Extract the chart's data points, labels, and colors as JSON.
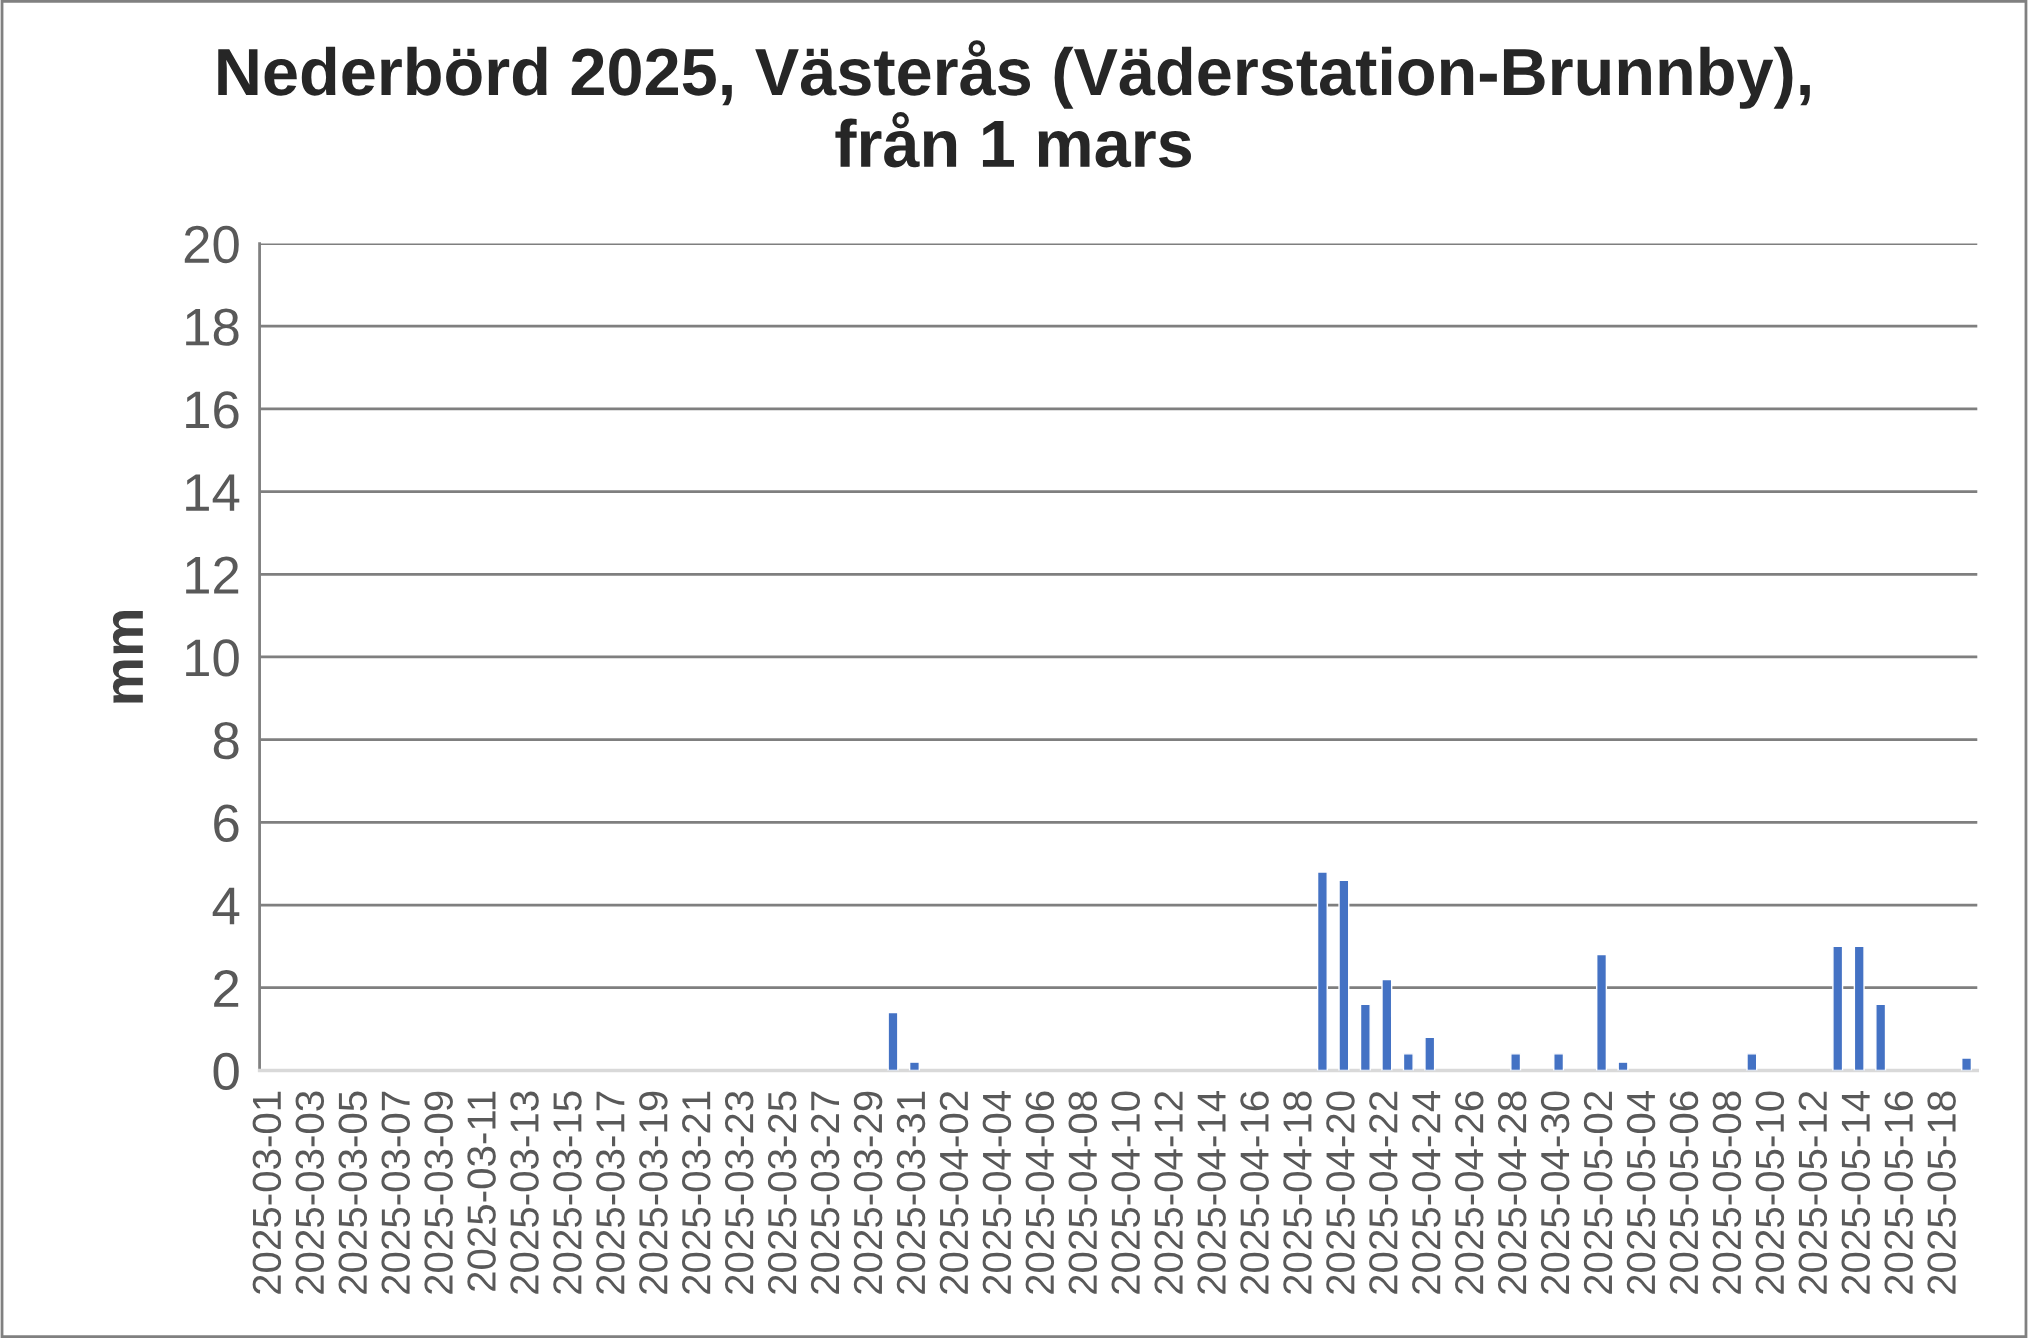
{
  "chart_data": {
    "type": "bar",
    "title": "Nederbörd 2025, Västerås (Väderstation-Brunnby),\nfrån 1 mars",
    "ylabel": "mm",
    "categories": [
      "2025-03-01",
      null,
      "2025-03-03",
      null,
      "2025-03-05",
      null,
      "2025-03-07",
      null,
      "2025-03-09",
      null,
      "2025-03-11",
      null,
      "2025-03-13",
      null,
      "2025-03-15",
      null,
      "2025-03-17",
      null,
      "2025-03-19",
      null,
      "2025-03-21",
      null,
      "2025-03-23",
      null,
      "2025-03-25",
      null,
      "2025-03-27",
      null,
      "2025-03-29",
      null,
      "2025-03-31",
      null,
      "2025-04-02",
      null,
      "2025-04-04",
      null,
      "2025-04-06",
      null,
      "2025-04-08",
      null,
      "2025-04-10",
      null,
      "2025-04-12",
      null,
      "2025-04-14",
      null,
      "2025-04-16",
      null,
      "2025-04-18",
      null,
      "2025-04-20",
      null,
      "2025-04-22",
      null,
      "2025-04-24",
      null,
      "2025-04-26",
      null,
      "2025-04-28",
      null,
      "2025-04-30",
      null,
      "2025-05-02",
      null,
      "2025-05-04",
      null,
      "2025-05-06",
      null,
      "2025-05-08",
      null,
      "2025-05-10",
      null,
      "2025-05-12",
      null,
      "2025-05-14",
      null,
      "2025-05-16",
      null,
      "2025-05-18",
      null
    ],
    "values": [
      0,
      0,
      0,
      0,
      0,
      0,
      0,
      0,
      0,
      0,
      0,
      0,
      0,
      0,
      0,
      0,
      0,
      0,
      0,
      0,
      0,
      0,
      0,
      0,
      0,
      0,
      0,
      0,
      0,
      1.4,
      0.2,
      0,
      0,
      0,
      0,
      0,
      0,
      0,
      0,
      0,
      0,
      0,
      0,
      0,
      0,
      0,
      0,
      0,
      0,
      4.8,
      4.6,
      1.6,
      2.2,
      0.4,
      0.8,
      0,
      0,
      0,
      0.4,
      0,
      0.4,
      0,
      2.8,
      0.2,
      0,
      0,
      0,
      0,
      0,
      0.4,
      0,
      0,
      0,
      3.0,
      3.0,
      1.6,
      0,
      0,
      0,
      0.3
    ],
    "color": "#4472c4",
    "ylim": [
      0,
      20
    ],
    "yticks": [
      0,
      2,
      4,
      6,
      8,
      10,
      12,
      14,
      16,
      18,
      20
    ],
    "grid": "y",
    "legend": false
  }
}
